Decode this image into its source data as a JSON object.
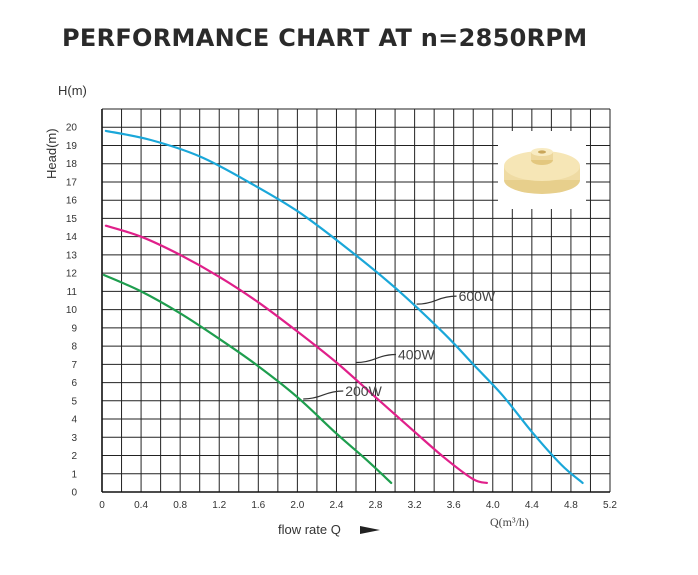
{
  "chart_data": {
    "type": "line",
    "title": "PERFORMANCE CHART AT n=2850RPM",
    "ylabel_top": "H(m)",
    "ylabel": "Head(m)",
    "xlabel": "flow rate Q",
    "xunit": "Q(m³/h)",
    "xlim": [
      0,
      5.2
    ],
    "ylim": [
      0,
      21
    ],
    "x_ticks": [
      "0",
      "0.4",
      "0.8",
      "1.2",
      "1.6",
      "2.0",
      "2.4",
      "2.8",
      "3.2",
      "3.6",
      "4.0",
      "4.4",
      "4.8",
      "5.2"
    ],
    "y_ticks": [
      "0",
      "1",
      "2",
      "3",
      "4",
      "5",
      "6",
      "7",
      "8",
      "9",
      "10",
      "11",
      "12",
      "13",
      "14",
      "15",
      "16",
      "17",
      "18",
      "19",
      "20"
    ],
    "grid": true,
    "series": [
      {
        "name": "600W",
        "color": "#1aa7d9",
        "x": [
          0.04,
          0.5,
          1.0,
          1.5,
          2.0,
          2.5,
          3.0,
          3.5,
          3.8,
          4.1,
          4.4,
          4.7,
          4.92
        ],
        "y": [
          19.8,
          19.3,
          18.4,
          17.0,
          15.4,
          13.4,
          11.2,
          8.7,
          7.0,
          5.3,
          3.3,
          1.5,
          0.5
        ]
      },
      {
        "name": "400W",
        "color": "#e0208a",
        "x": [
          0.04,
          0.4,
          0.8,
          1.2,
          1.6,
          2.0,
          2.4,
          2.8,
          3.2,
          3.5,
          3.8,
          3.94
        ],
        "y": [
          14.6,
          14.0,
          13.0,
          11.8,
          10.4,
          8.8,
          7.1,
          5.2,
          3.3,
          1.9,
          0.7,
          0.5
        ]
      },
      {
        "name": "200W",
        "color": "#1e9e4e",
        "x": [
          0.02,
          0.4,
          0.8,
          1.2,
          1.6,
          2.0,
          2.4,
          2.7,
          2.96
        ],
        "y": [
          11.9,
          11.0,
          9.8,
          8.4,
          6.9,
          5.2,
          3.2,
          1.8,
          0.5
        ]
      }
    ],
    "annotations": [
      {
        "label": "600W",
        "series": "600W",
        "x": 3.22,
        "y": 10.3
      },
      {
        "label": "400W",
        "series": "400W",
        "x": 2.6,
        "y": 7.1
      },
      {
        "label": "200W",
        "series": "200W",
        "x": 2.06,
        "y": 5.1
      }
    ]
  },
  "inset_image": {
    "icon": "impeller-photo-icon",
    "color": "#f2dfa6"
  }
}
